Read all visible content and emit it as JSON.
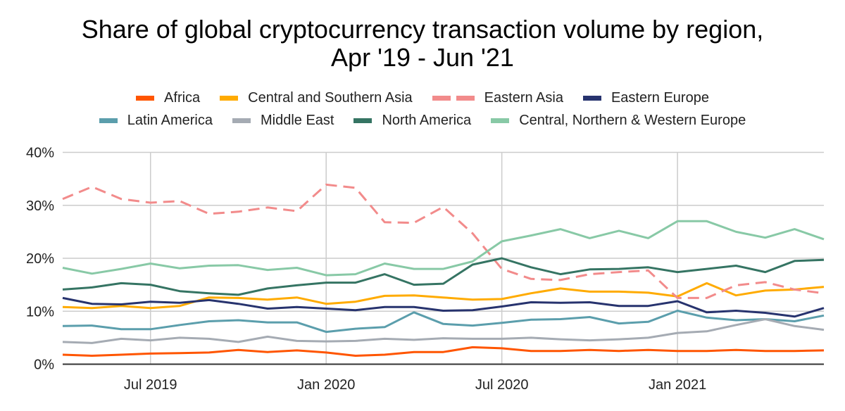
{
  "chart_data": {
    "type": "line",
    "title": "Share of global cryptocurrency transaction volume by region,",
    "subtitle": "Apr '19 - Jun '21",
    "xlabel": "",
    "ylabel": "",
    "ylim": [
      0,
      40
    ],
    "yticks": [
      0,
      10,
      20,
      30,
      40
    ],
    "ytick_labels": [
      "0%",
      "10%",
      "20%",
      "30%",
      "40%"
    ],
    "grid": true,
    "legend_position": "top",
    "x": [
      "Apr 2019",
      "May 2019",
      "Jun 2019",
      "Jul 2019",
      "Aug 2019",
      "Sep 2019",
      "Oct 2019",
      "Nov 2019",
      "Dec 2019",
      "Jan 2020",
      "Feb 2020",
      "Mar 2020",
      "Apr 2020",
      "May 2020",
      "Jun 2020",
      "Jul 2020",
      "Aug 2020",
      "Sep 2020",
      "Oct 2020",
      "Nov 2020",
      "Dec 2020",
      "Jan 2021",
      "Feb 2021",
      "Mar 2021",
      "Apr 2021",
      "May 2021",
      "Jun 2021"
    ],
    "xticks": [
      {
        "index": 3,
        "label": "Jul 2019"
      },
      {
        "index": 9,
        "label": "Jan 2020"
      },
      {
        "index": 15,
        "label": "Jul 2020"
      },
      {
        "index": 21,
        "label": "Jan 2021"
      }
    ],
    "series": [
      {
        "name": "Africa",
        "color": "#ff5500",
        "dashed": false,
        "values": [
          1.8,
          1.6,
          1.8,
          2.0,
          2.1,
          2.2,
          2.7,
          2.3,
          2.6,
          2.2,
          1.6,
          1.8,
          2.3,
          2.3,
          3.2,
          3.0,
          2.5,
          2.5,
          2.7,
          2.5,
          2.7,
          2.5,
          2.5,
          2.7,
          2.5,
          2.5,
          2.6
        ]
      },
      {
        "name": "Central and Southern Asia",
        "color": "#ffab00",
        "dashed": false,
        "values": [
          10.8,
          10.6,
          11.0,
          10.6,
          11.0,
          12.6,
          12.5,
          12.2,
          12.6,
          11.4,
          11.8,
          12.9,
          13.0,
          12.6,
          12.2,
          12.3,
          13.4,
          14.3,
          13.7,
          13.7,
          13.5,
          12.8,
          15.3,
          13.0,
          13.9,
          14.1,
          14.6
        ]
      },
      {
        "name": "Eastern Asia",
        "color": "#f28b8b",
        "dashed": true,
        "values": [
          31.2,
          33.5,
          31.2,
          30.5,
          30.8,
          28.4,
          28.8,
          29.6,
          28.9,
          33.9,
          33.3,
          26.8,
          26.7,
          29.7,
          24.7,
          18.0,
          16.1,
          15.9,
          17.0,
          17.4,
          17.7,
          12.5,
          12.5,
          14.9,
          15.5,
          14.1,
          13.4
        ]
      },
      {
        "name": "Eastern Europe",
        "color": "#27336e",
        "dashed": false,
        "values": [
          12.5,
          11.4,
          11.3,
          11.8,
          11.6,
          12.1,
          11.4,
          10.5,
          10.8,
          10.5,
          10.2,
          10.8,
          10.8,
          10.1,
          10.2,
          10.9,
          11.7,
          11.6,
          11.7,
          11.0,
          11.0,
          11.9,
          9.8,
          10.1,
          9.7,
          9.0,
          10.6
        ]
      },
      {
        "name": "Latin America",
        "color": "#5b9eac",
        "dashed": false,
        "values": [
          7.2,
          7.3,
          6.6,
          6.6,
          7.4,
          8.1,
          8.3,
          7.9,
          7.9,
          6.1,
          6.7,
          7.0,
          9.8,
          7.6,
          7.3,
          7.8,
          8.4,
          8.5,
          8.9,
          7.7,
          8.0,
          10.1,
          8.8,
          8.3,
          8.5,
          8.1,
          9.2
        ]
      },
      {
        "name": "Middle East",
        "color": "#a5abb3",
        "dashed": false,
        "values": [
          4.2,
          4.0,
          4.8,
          4.5,
          5.0,
          4.8,
          4.2,
          5.2,
          4.4,
          4.3,
          4.4,
          4.8,
          4.6,
          4.9,
          4.8,
          4.8,
          5.0,
          4.7,
          4.5,
          4.7,
          5.0,
          5.9,
          6.2,
          7.4,
          8.5,
          7.2,
          6.5
        ]
      },
      {
        "name": "North America",
        "color": "#357463",
        "dashed": false,
        "values": [
          14.1,
          14.5,
          15.3,
          15.0,
          13.8,
          13.4,
          13.1,
          14.3,
          14.9,
          15.4,
          15.4,
          17.0,
          15.0,
          15.2,
          18.8,
          20.0,
          18.3,
          17.0,
          17.9,
          18.0,
          18.3,
          17.4,
          18.0,
          18.6,
          17.4,
          19.5,
          19.7
        ]
      },
      {
        "name": "Central, Northern & Western Europe",
        "color": "#88c9a6",
        "dashed": false,
        "values": [
          18.2,
          17.1,
          18.0,
          19.0,
          18.1,
          18.6,
          18.7,
          17.8,
          18.2,
          16.8,
          17.0,
          19.0,
          18.0,
          18.0,
          19.4,
          23.2,
          24.3,
          25.5,
          23.8,
          25.2,
          23.8,
          27.0,
          27.0,
          25.0,
          23.9,
          25.5,
          23.6
        ]
      }
    ]
  }
}
